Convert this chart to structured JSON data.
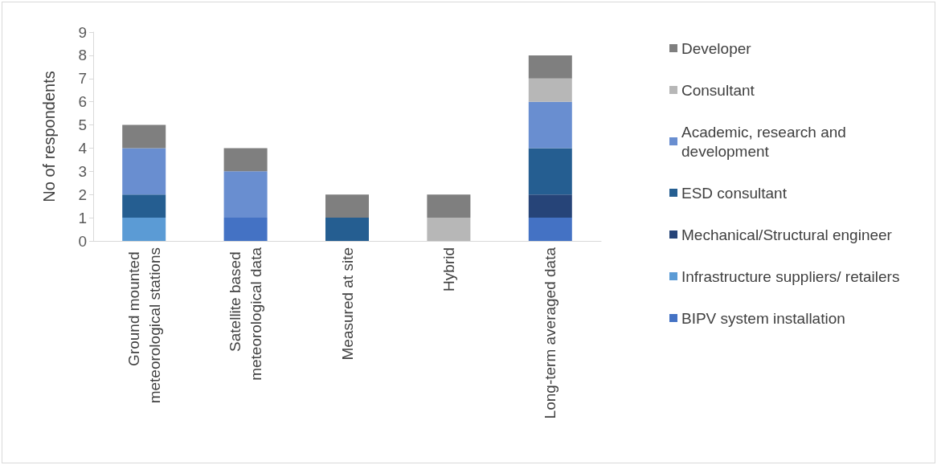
{
  "chart_data": {
    "type": "bar",
    "stacked": true,
    "ylabel": "No of respondents",
    "categories": [
      "Ground mounted meteorological stations",
      "Satellite based meteorological data",
      "Measured at site",
      "Hybrid",
      "Long-term averaged data"
    ],
    "series": [
      {
        "name": "BIPV system installation",
        "color": "#4472c4",
        "values": [
          0,
          1,
          0,
          0,
          1
        ]
      },
      {
        "name": "Infrastructure suppliers/ retailers",
        "color": "#5b9bd5",
        "values": [
          1,
          0,
          0,
          0,
          0
        ]
      },
      {
        "name": "Mechanical/Structural engineer",
        "color": "#264478",
        "values": [
          0,
          0,
          0,
          0,
          1
        ]
      },
      {
        "name": "ESD consultant",
        "color": "#255e91",
        "values": [
          1,
          0,
          1,
          0,
          2
        ]
      },
      {
        "name": "Academic, research and development",
        "color": "#698ed0",
        "values": [
          2,
          2,
          0,
          0,
          2
        ]
      },
      {
        "name": "Consultant",
        "color": "#b7b7b7",
        "values": [
          0,
          0,
          0,
          1,
          1
        ]
      },
      {
        "name": "Developer",
        "color": "#7f7f7f",
        "values": [
          1,
          1,
          1,
          1,
          1
        ]
      }
    ],
    "ylim": [
      0,
      9
    ],
    "yticks": [
      0,
      1,
      2,
      3,
      4,
      5,
      6,
      7,
      8,
      9
    ],
    "grid": false,
    "legend": "right"
  }
}
